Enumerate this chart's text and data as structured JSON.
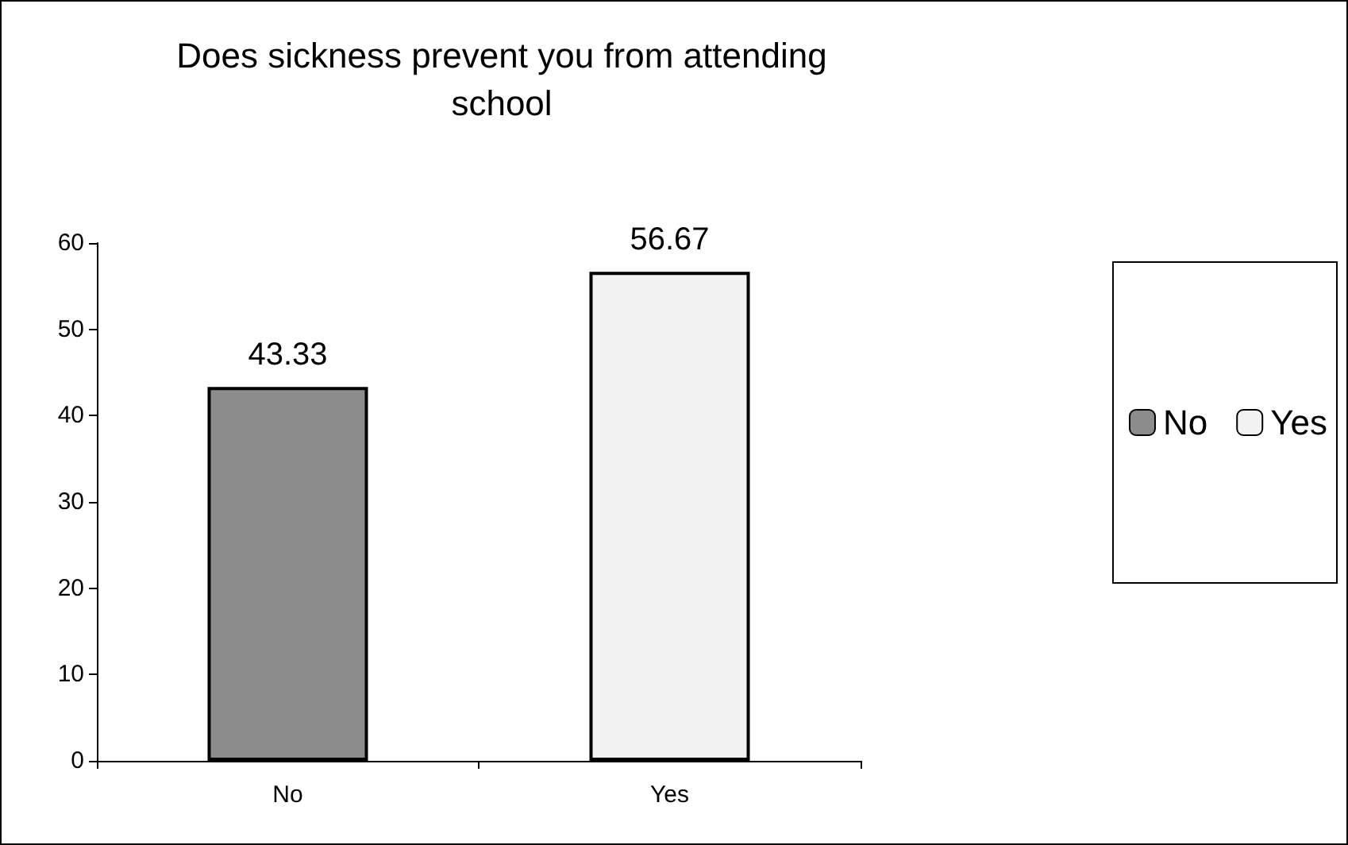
{
  "chart_data": {
    "type": "bar",
    "title": "Does sickness prevent you from attending\nschool",
    "categories": [
      "No",
      "Yes"
    ],
    "stacked": true,
    "series": [
      {
        "name": "No",
        "color": "#8c8c8c",
        "values": [
          43.33,
          null
        ]
      },
      {
        "name": "Yes",
        "color": "#f2f2f2",
        "values": [
          null,
          56.67
        ]
      }
    ],
    "ylim": [
      0,
      60
    ],
    "yticks": [
      0,
      10,
      20,
      30,
      40,
      50,
      60
    ],
    "data_labels": true,
    "legend": "right",
    "grid": false
  }
}
